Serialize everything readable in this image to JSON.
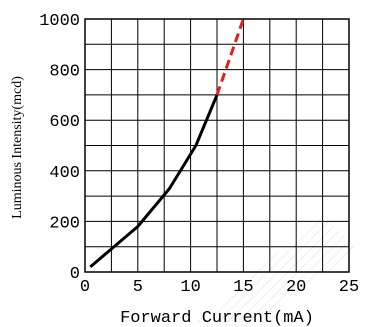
{
  "chart_data": {
    "type": "line",
    "title": "",
    "xlabel": "Forward Current(mA)",
    "ylabel": "Luminous Intensity(mcd)",
    "xlim": [
      0,
      25
    ],
    "ylim": [
      0,
      1000
    ],
    "x_ticks": [
      "0",
      "5",
      "10",
      "15",
      "20",
      "25"
    ],
    "y_ticks": [
      "0",
      "200",
      "400",
      "600",
      "800",
      "1000"
    ],
    "grid": true,
    "series": [
      {
        "style": "solid",
        "color": "#000000",
        "points": [
          [
            0.5,
            20
          ],
          [
            5,
            180
          ],
          [
            8,
            330
          ],
          [
            10.5,
            500
          ],
          [
            12.5,
            700
          ]
        ]
      },
      {
        "style": "dashed",
        "color": "#e02020",
        "points": [
          [
            12.5,
            700
          ],
          [
            15,
            1000
          ]
        ]
      }
    ]
  }
}
